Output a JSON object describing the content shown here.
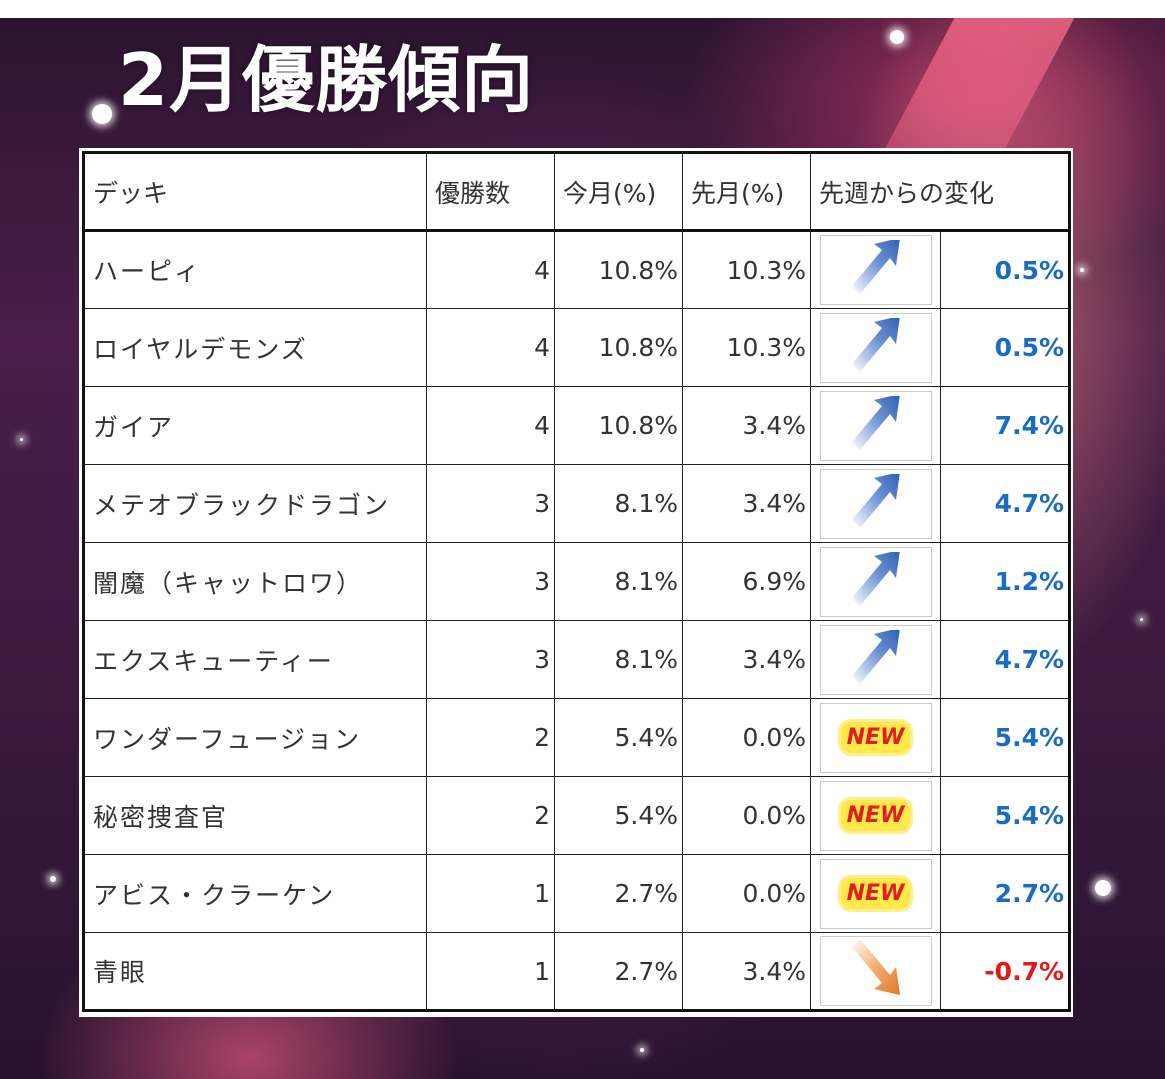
{
  "title": "2月優勝傾向",
  "colors": {
    "positive_change": "#1a6cc0",
    "negative_change": "#e01a1a",
    "up_arrow": "#2f5fb0",
    "down_arrow": "#e0782a",
    "new_badge_text": "#e02020",
    "new_badge_fill": "#ffe94a"
  },
  "table": {
    "headers": {
      "deck": "デッキ",
      "wins": "優勝数",
      "this_month": "今月(%)",
      "last_month": "先月(%)",
      "change": "先週からの変化"
    },
    "rows": [
      {
        "deck": "ハーピィ",
        "wins": "4",
        "this_month": "10.8%",
        "last_month": "10.3%",
        "trend": "up-arrow-icon",
        "change": "0.5%"
      },
      {
        "deck": "ロイヤルデモンズ",
        "wins": "4",
        "this_month": "10.8%",
        "last_month": "10.3%",
        "trend": "up-arrow-icon",
        "change": "0.5%"
      },
      {
        "deck": "ガイア",
        "wins": "4",
        "this_month": "10.8%",
        "last_month": "3.4%",
        "trend": "up-arrow-icon",
        "change": "7.4%"
      },
      {
        "deck": "メテオブラックドラゴン",
        "wins": "3",
        "this_month": "8.1%",
        "last_month": "3.4%",
        "trend": "up-arrow-icon",
        "change": "4.7%"
      },
      {
        "deck": "闇魔（キャットロワ）",
        "wins": "3",
        "this_month": "8.1%",
        "last_month": "6.9%",
        "trend": "up-arrow-icon",
        "change": "1.2%"
      },
      {
        "deck": "エクスキューティー",
        "wins": "3",
        "this_month": "8.1%",
        "last_month": "3.4%",
        "trend": "up-arrow-icon",
        "change": "4.7%"
      },
      {
        "deck": "ワンダーフュージョン",
        "wins": "2",
        "this_month": "5.4%",
        "last_month": "0.0%",
        "trend": "new-badge-icon",
        "new_label": "NEW",
        "change": "5.4%"
      },
      {
        "deck": "秘密捜査官",
        "wins": "2",
        "this_month": "5.4%",
        "last_month": "0.0%",
        "trend": "new-badge-icon",
        "new_label": "NEW",
        "change": "5.4%"
      },
      {
        "deck": "アビス・クラーケン",
        "wins": "1",
        "this_month": "2.7%",
        "last_month": "0.0%",
        "trend": "new-badge-icon",
        "new_label": "NEW",
        "change": "2.7%"
      },
      {
        "deck": "青眼",
        "wins": "1",
        "this_month": "2.7%",
        "last_month": "3.4%",
        "trend": "down-arrow-icon",
        "change": "-0.7%"
      }
    ]
  }
}
